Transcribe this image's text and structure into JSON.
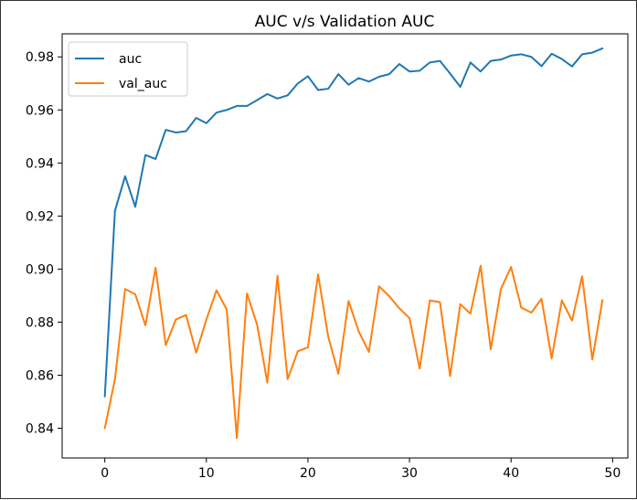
{
  "chart_data": {
    "type": "line",
    "title": "AUC v/s Validation AUC",
    "xlabel": "",
    "ylabel": "",
    "x": [
      0,
      1,
      2,
      3,
      4,
      5,
      6,
      7,
      8,
      9,
      10,
      11,
      12,
      13,
      14,
      15,
      16,
      17,
      18,
      19,
      20,
      21,
      22,
      23,
      24,
      25,
      26,
      27,
      28,
      29,
      30,
      31,
      32,
      33,
      34,
      35,
      36,
      37,
      38,
      39,
      40,
      41,
      42,
      43,
      44,
      45,
      46,
      47,
      48,
      49
    ],
    "xlim": [
      -4.2,
      51.5
    ],
    "ylim": [
      0.8288,
      0.9887
    ],
    "xticks": [
      0,
      10,
      20,
      30,
      40,
      50
    ],
    "xtick_labels": [
      "0",
      "10",
      "20",
      "30",
      "40",
      "50"
    ],
    "yticks": [
      0.84,
      0.86,
      0.88,
      0.9,
      0.92,
      0.94,
      0.96,
      0.98
    ],
    "ytick_labels": [
      "0.84",
      "0.86",
      "0.88",
      "0.90",
      "0.92",
      "0.94",
      "0.96",
      "0.98"
    ],
    "grid": false,
    "legend_position": "upper-left",
    "series": [
      {
        "name": "auc",
        "color": "#1f77b4",
        "values": [
          0.852,
          0.922,
          0.935,
          0.9235,
          0.943,
          0.9415,
          0.9525,
          0.9515,
          0.952,
          0.957,
          0.955,
          0.959,
          0.96,
          0.9615,
          0.9615,
          0.9637,
          0.966,
          0.9643,
          0.9655,
          0.97,
          0.9727,
          0.9675,
          0.968,
          0.9735,
          0.9695,
          0.972,
          0.9707,
          0.9725,
          0.9735,
          0.9773,
          0.9745,
          0.9748,
          0.9779,
          0.9785,
          0.9737,
          0.9687,
          0.9779,
          0.9745,
          0.9785,
          0.979,
          0.9805,
          0.981,
          0.98,
          0.9765,
          0.9812,
          0.9792,
          0.9764,
          0.981,
          0.9816,
          0.9832
        ]
      },
      {
        "name": "val_auc",
        "color": "#ff7f0e",
        "values": [
          0.84,
          0.8585,
          0.8925,
          0.8905,
          0.8788,
          0.9005,
          0.8713,
          0.881,
          0.8827,
          0.8685,
          0.881,
          0.892,
          0.8848,
          0.8363,
          0.8908,
          0.879,
          0.8572,
          0.8975,
          0.8585,
          0.869,
          0.8705,
          0.898,
          0.8745,
          0.8605,
          0.888,
          0.8765,
          0.8688,
          0.8935,
          0.8898,
          0.8852,
          0.8815,
          0.8625,
          0.8882,
          0.8875,
          0.8597,
          0.8868,
          0.8832,
          0.9013,
          0.8698,
          0.8925,
          0.9008,
          0.8855,
          0.8836,
          0.8888,
          0.8663,
          0.8882,
          0.8806,
          0.8973,
          0.8659,
          0.8883
        ]
      }
    ]
  }
}
